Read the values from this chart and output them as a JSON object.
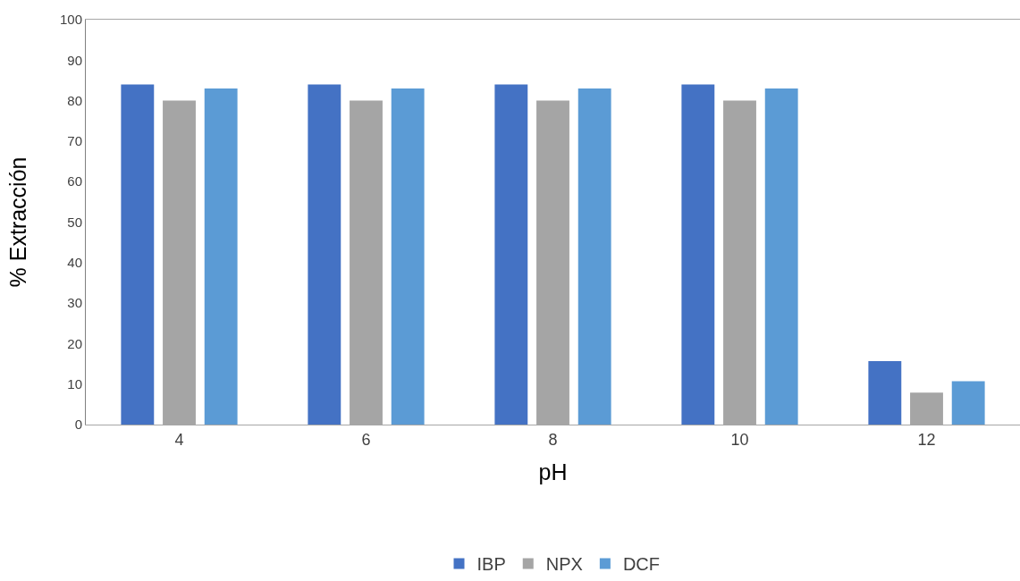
{
  "chart_data": {
    "type": "bar",
    "xlabel": "pH",
    "ylabel": "% Extracción",
    "categories": [
      "4",
      "6",
      "8",
      "10",
      "12"
    ],
    "series": [
      {
        "name": "IBP",
        "color": "#4472c4",
        "values": [
          84,
          84,
          84,
          84,
          15.7
        ]
      },
      {
        "name": "NPX",
        "color": "#a5a5a5",
        "values": [
          80,
          80,
          80,
          80,
          7.9
        ]
      },
      {
        "name": "DCF",
        "color": "#5b9bd5",
        "values": [
          83,
          83,
          83,
          83,
          10.7
        ]
      }
    ],
    "ylim": [
      0,
      100
    ],
    "yticks": [
      0,
      10,
      20,
      30,
      40,
      50,
      60,
      70,
      80,
      90,
      100
    ],
    "legend": "bottom"
  }
}
